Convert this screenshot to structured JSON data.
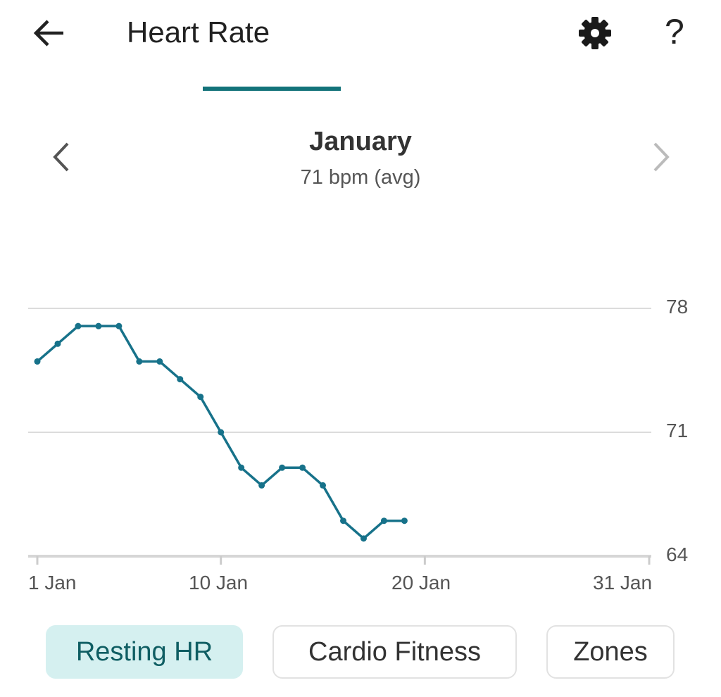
{
  "header": {
    "title": "Heart Rate",
    "back_icon": "arrow-left-icon",
    "settings_icon": "gear-icon",
    "help_icon": "question-mark-icon"
  },
  "period": {
    "month": "January",
    "average": "71 bpm (avg)",
    "prev_icon": "chevron-left-icon",
    "next_icon": "chevron-right-icon"
  },
  "chart_data": {
    "type": "line",
    "x": [
      1,
      2,
      3,
      4,
      5,
      6,
      7,
      8,
      9,
      10,
      11,
      12,
      13,
      14,
      15,
      16,
      17,
      18,
      19
    ],
    "values": [
      75,
      76,
      77,
      77,
      77,
      75,
      75,
      74,
      73,
      71,
      69,
      68,
      69,
      69,
      68,
      66,
      65,
      66,
      66
    ],
    "xlim": [
      1,
      31
    ],
    "ylim": [
      64,
      78
    ],
    "y_ticks": [
      "78",
      "71",
      "64"
    ],
    "x_ticks": [
      {
        "day": 1,
        "label": "1 Jan"
      },
      {
        "day": 10,
        "label": "10 Jan"
      },
      {
        "day": 20,
        "label": "20 Jan"
      },
      {
        "day": 31,
        "label": "31 Jan"
      }
    ],
    "grid": true,
    "line_color": "#17728a"
  },
  "tabs": [
    {
      "label": "Resting HR",
      "active": true
    },
    {
      "label": "Cardio Fitness",
      "active": false
    },
    {
      "label": "Zones",
      "active": false
    }
  ],
  "colors": {
    "accent": "#13737a",
    "active_bg": "#d5f0f0"
  }
}
